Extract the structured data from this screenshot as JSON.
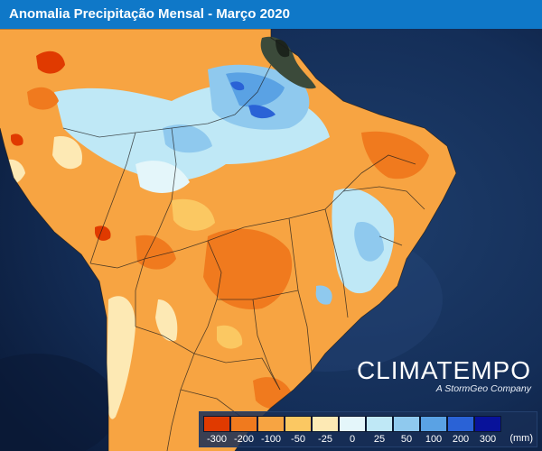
{
  "title": "Anomalia Precipitação Mensal - Março 2020",
  "brand": {
    "name": "CLIMATEMPO",
    "tagline": "A StormGeo Company"
  },
  "legend": {
    "unit": "(mm)",
    "classes": [
      {
        "value": -300,
        "color": "#e03a00"
      },
      {
        "value": -200,
        "color": "#f07a1e"
      },
      {
        "value": -100,
        "color": "#f7a442"
      },
      {
        "value": -50,
        "color": "#fbc862"
      },
      {
        "value": -25,
        "color": "#fde9b4"
      },
      {
        "value": 0,
        "color": "#e4f6fa"
      },
      {
        "value": 25,
        "color": "#bfe8f6"
      },
      {
        "value": 50,
        "color": "#8fc9ee"
      },
      {
        "value": 100,
        "color": "#5aa2e4"
      },
      {
        "value": 200,
        "color": "#2a62d6"
      },
      {
        "value": 300,
        "color": "#08129a"
      }
    ],
    "labels": [
      "-300",
      "-200",
      "-100",
      "-50",
      "-25",
      "0",
      "25",
      "50",
      "100",
      "200",
      "300"
    ]
  },
  "colors": {
    "ocean": "#0d2247",
    "ocean_light": "#1d3e6e",
    "title_bar": "#0f78c8",
    "land_dark": "#3b4a3a"
  }
}
